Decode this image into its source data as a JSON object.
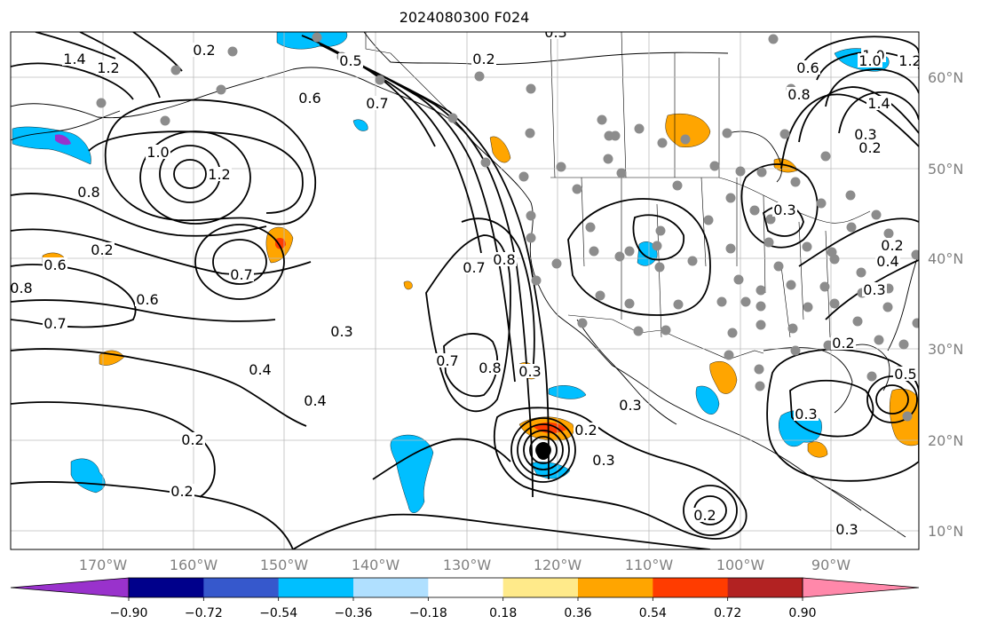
{
  "title": "2024080300 F024",
  "lon_labels": [
    "170°W",
    "160°W",
    "150°W",
    "140°W",
    "130°W",
    "120°W",
    "110°W",
    "100°W",
    "90°W"
  ],
  "lat_labels": [
    "60°N",
    "50°N",
    "40°N",
    "30°N",
    "20°N",
    "10°N"
  ],
  "colorbar": {
    "colors": [
      "#9932cc",
      "#00008b",
      "#3658cc",
      "#00bfff",
      "#b0e0ff",
      "#ffffff",
      "#ffea8a",
      "#ffa500",
      "#ff3c00",
      "#b22222",
      "#ff88aa"
    ],
    "tick_labels": [
      "−0.90",
      "−0.72",
      "−0.54",
      "−0.36",
      "−0.18",
      "0.18",
      "0.36",
      "0.54",
      "0.72",
      "0.90"
    ]
  },
  "contour_labels": [
    "1.4",
    "1.2",
    "0.5",
    "0.3",
    "0.2",
    "1.0",
    "0.6",
    "0.7",
    "1.0",
    "1.2",
    "0.8",
    "0.6",
    "0.8",
    "0.7",
    "0.6",
    "0.7",
    "0.3",
    "0.4",
    "0.4",
    "0.7",
    "0.8",
    "0.7",
    "0.8",
    "0.3",
    "0.2",
    "0.3",
    "0.2",
    "0.3",
    "0.3",
    "0.2",
    "0.3",
    "0.5",
    "0.3",
    "0.2",
    "0.2",
    "1.0",
    "1.2",
    "1.4",
    "0.8",
    "0.6",
    "0.2",
    "0.3",
    "0.4",
    "0.3",
    "0.2",
    "0.2",
    "0.2"
  ]
}
